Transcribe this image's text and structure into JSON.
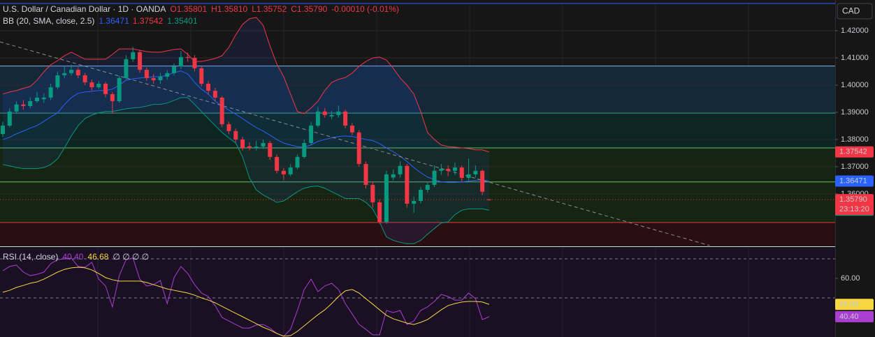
{
  "header": {
    "symbol": "U.S. Dollar / Canadian Dollar · 1D · OANDA",
    "open": "O1.35801",
    "high": "H1.35810",
    "low": "L1.35752",
    "close": "C1.35790",
    "change": "-0.00010 (-0.01%)",
    "currency": "CAD"
  },
  "chart_data": [
    {
      "type": "candlestick",
      "up_color": "#089981",
      "down_color": "#f23645",
      "xlim": [
        -0.408,
        121.5
      ],
      "ylim": [
        1.341,
        1.43
      ],
      "yticks": [
        {
          "value": 1.42,
          "label": "1.42000"
        },
        {
          "value": 1.41,
          "label": "1.41000"
        },
        {
          "value": 1.4,
          "label": "1.40000"
        },
        {
          "value": 1.39,
          "label": "1.39000"
        },
        {
          "value": 1.38,
          "label": "1.38000"
        },
        {
          "value": 1.37,
          "label": "1.37000"
        },
        {
          "value": 1.36,
          "label": "1.36000"
        }
      ],
      "grid": true,
      "open": [
        1.382,
        1.3851,
        1.3903,
        1.3929,
        1.3923,
        1.3941,
        1.3948,
        1.3954,
        1.3992,
        1.4036,
        1.4044,
        1.4056,
        1.4036,
        1.401,
        1.3992,
        1.4005,
        1.3967,
        1.3941,
        1.4026,
        1.4095,
        1.4121,
        1.4056,
        1.4026,
        1.4018,
        1.4031,
        1.4044,
        1.4069,
        1.4103,
        1.41,
        1.4062,
        1.4005,
        1.3979,
        1.3954,
        1.3856,
        1.3831,
        1.38,
        1.3775,
        1.3769,
        1.3774,
        1.3787,
        1.3736,
        1.3685,
        1.3672,
        1.3697,
        1.3736,
        1.3787,
        1.3851,
        1.3903,
        1.3885,
        1.389,
        1.3903,
        1.3851,
        1.3826,
        1.371,
        1.3633,
        1.3569,
        1.3497,
        1.366,
        1.3672,
        1.3703,
        1.3564,
        1.3574,
        1.3615,
        1.3633,
        1.3685,
        1.3692,
        1.3685,
        1.3697,
        1.3659,
        1.3672,
        1.3685,
        1.35801
      ],
      "high": [
        1.3865,
        1.3915,
        1.394,
        1.3945,
        1.3955,
        1.3975,
        1.397,
        1.4005,
        1.405,
        1.407,
        1.4075,
        1.4065,
        1.4045,
        1.402,
        1.4015,
        1.4012,
        1.3975,
        1.4035,
        1.411,
        1.414,
        1.413,
        1.4065,
        1.404,
        1.4045,
        1.4055,
        1.408,
        1.4125,
        1.412,
        1.411,
        1.407,
        1.4015,
        1.399,
        1.396,
        1.3865,
        1.384,
        1.381,
        1.379,
        1.3795,
        1.38,
        1.3795,
        1.3745,
        1.3695,
        1.371,
        1.3745,
        1.38,
        1.3865,
        1.392,
        1.3915,
        1.3905,
        1.3925,
        1.391,
        1.386,
        1.3835,
        1.372,
        1.3645,
        1.358,
        1.3685,
        1.369,
        1.372,
        1.371,
        1.359,
        1.3625,
        1.3645,
        1.3705,
        1.371,
        1.3705,
        1.3715,
        1.3705,
        1.373,
        1.3705,
        1.369,
        1.3581
      ],
      "low": [
        1.381,
        1.3845,
        1.3895,
        1.391,
        1.3915,
        1.3935,
        1.3935,
        1.3945,
        1.3985,
        1.4025,
        1.4035,
        1.4025,
        1.4,
        1.398,
        1.3985,
        1.3955,
        1.3895,
        1.3935,
        1.402,
        1.4085,
        1.4045,
        1.4015,
        1.4005,
        1.4005,
        1.402,
        1.4035,
        1.406,
        1.4085,
        1.405,
        1.3995,
        1.3965,
        1.394,
        1.3845,
        1.382,
        1.379,
        1.376,
        1.376,
        1.376,
        1.3765,
        1.3725,
        1.3675,
        1.365,
        1.3665,
        1.369,
        1.373,
        1.378,
        1.3845,
        1.388,
        1.3875,
        1.388,
        1.384,
        1.3815,
        1.37,
        1.362,
        1.355,
        1.349,
        1.349,
        1.365,
        1.366,
        1.355,
        1.353,
        1.3565,
        1.3605,
        1.3625,
        1.367,
        1.3665,
        1.367,
        1.3645,
        1.365,
        1.366,
        1.3595,
        1.35752
      ],
      "close": [
        1.3851,
        1.3903,
        1.3929,
        1.3923,
        1.3941,
        1.3954,
        1.3954,
        1.3992,
        1.4036,
        1.4044,
        1.4056,
        1.4036,
        1.401,
        1.3992,
        1.4005,
        1.3967,
        1.3941,
        1.4026,
        1.4095,
        1.4121,
        1.4056,
        1.4026,
        1.4018,
        1.4031,
        1.4044,
        1.4069,
        1.4103,
        1.41,
        1.4062,
        1.4005,
        1.3979,
        1.3954,
        1.3856,
        1.3831,
        1.38,
        1.3769,
        1.3769,
        1.3774,
        1.3787,
        1.3736,
        1.3685,
        1.3672,
        1.3697,
        1.3736,
        1.3787,
        1.3851,
        1.3903,
        1.389,
        1.389,
        1.3903,
        1.3851,
        1.3826,
        1.371,
        1.3633,
        1.3569,
        1.3497,
        1.3672,
        1.3672,
        1.3703,
        1.3564,
        1.3574,
        1.3615,
        1.3633,
        1.3685,
        1.3692,
        1.3685,
        1.3697,
        1.3659,
        1.3672,
        1.3685,
        1.3608,
        1.3579
      ],
      "overlays": {
        "name": "BB (20, SMA, close, 2.5)",
        "fill": "rgba(41,98,255,0.10)",
        "series": [
          {
            "color": "#2962ff",
            "value_label": "1.36471",
            "values": [
              1.38,
              1.3808,
              1.3821,
              1.3831,
              1.3842,
              1.3851,
              1.3867,
              1.3883,
              1.3898,
              1.3929,
              1.3954,
              1.397,
              1.3975,
              1.3977,
              1.398,
              1.398,
              1.3985,
              1.4,
              1.4018,
              1.4023,
              1.4026,
              1.4028,
              1.4031,
              1.4031,
              1.4036,
              1.4046,
              1.4052,
              1.4041,
              1.401,
              1.3985,
              1.3967,
              1.3941,
              1.3923,
              1.3908,
              1.3893,
              1.3877,
              1.386,
              1.3844,
              1.3831,
              1.3816,
              1.38,
              1.3787,
              1.378,
              1.3774,
              1.3772,
              1.378,
              1.3793,
              1.38,
              1.3806,
              1.3811,
              1.3813,
              1.3811,
              1.3806,
              1.38,
              1.3796,
              1.3785,
              1.3769,
              1.3755,
              1.3739,
              1.3719,
              1.3697,
              1.3678,
              1.3662,
              1.3652,
              1.3644,
              1.3642,
              1.3642,
              1.3644,
              1.3647,
              1.365,
              1.3652,
              1.36471
            ]
          },
          {
            "color": "#f23645",
            "value_label": "1.37542",
            "values": [
              1.3967,
              1.3975,
              1.398,
              1.3988,
              1.3995,
              1.4018,
              1.4049,
              1.4075,
              1.409,
              1.4108,
              1.4121,
              1.4108,
              1.4095,
              1.4095,
              1.4095,
              1.4095,
              1.4113,
              1.4133,
              1.4133,
              1.4133,
              1.4128,
              1.4123,
              1.4121,
              1.4121,
              1.4126,
              1.4131,
              1.4133,
              1.4113,
              1.4087,
              1.4087,
              1.4092,
              1.4098,
              1.4108,
              1.4139,
              1.4185,
              1.4223,
              1.4244,
              1.4249,
              1.422,
              1.4144,
              1.4077,
              1.4031,
              1.3967,
              1.3903,
              1.3895,
              1.3916,
              1.3941,
              1.398,
              1.401,
              1.4021,
              1.4028,
              1.4044,
              1.4069,
              1.4087,
              1.41,
              1.4103,
              1.4092,
              1.4062,
              1.4026,
              1.4,
              1.3967,
              1.3903,
              1.3826,
              1.38,
              1.378,
              1.3774,
              1.3772,
              1.3769,
              1.3767,
              1.3762,
              1.3762,
              1.37542
            ]
          },
          {
            "color": "#089981",
            "value_label": "1.35401",
            "values": [
              1.3708,
              1.3703,
              1.3697,
              1.3693,
              1.3693,
              1.3693,
              1.3697,
              1.3708,
              1.3729,
              1.3769,
              1.3813,
              1.3851,
              1.3877,
              1.389,
              1.3898,
              1.3903,
              1.3903,
              1.3908,
              1.3913,
              1.3916,
              1.3918,
              1.3923,
              1.3929,
              1.3929,
              1.3934,
              1.3944,
              1.3954,
              1.3954,
              1.3929,
              1.3903,
              1.3877,
              1.3851,
              1.3826,
              1.3806,
              1.3787,
              1.3736,
              1.3659,
              1.3615,
              1.3596,
              1.3583,
              1.3569,
              1.3574,
              1.3591,
              1.3608,
              1.3621,
              1.3627,
              1.3629,
              1.3621,
              1.3608,
              1.3596,
              1.3583,
              1.3583,
              1.3583,
              1.3569,
              1.3545,
              1.3497,
              1.3442,
              1.3429,
              1.3422,
              1.3417,
              1.3417,
              1.3429,
              1.3452,
              1.3473,
              1.3493,
              1.3497,
              1.3524,
              1.354,
              1.3545,
              1.3545,
              1.3545,
              1.35401
            ]
          }
        ]
      },
      "levels": [
        {
          "value": 1.407,
          "color": "#7fb3e6"
        },
        {
          "value": 1.3897,
          "color": "#26a69a"
        },
        {
          "value": 1.3769,
          "color": "#66bb6a"
        },
        {
          "value": 1.3644,
          "color": "#66bb6a"
        },
        {
          "value": 1.3495,
          "color": "#e53935"
        }
      ],
      "zones": [
        {
          "from": 1.407,
          "to": 1.3897,
          "color": "#14283a"
        },
        {
          "from": 1.3897,
          "to": 1.3769,
          "color": "#0d2621"
        },
        {
          "from": 1.3769,
          "to": 1.3495,
          "color": "#162412"
        },
        {
          "from": 1.3495,
          "to": 1.341,
          "color": "#2a0f12"
        }
      ],
      "trendline": {
        "x": [
          -0.4,
          103.2
        ],
        "y": [
          1.4159,
          1.341
        ],
        "color": "#8a8d96"
      },
      "last_price": {
        "value": 1.3579,
        "label": "1.35790",
        "countdown": "23:13:20",
        "color": "#f23645"
      }
    },
    {
      "type": "line",
      "title": "RSI (14, close)",
      "placeholders": "∅ ∅ ∅ ∅",
      "xlim": [
        -0.408,
        121.5
      ],
      "ylim": [
        30,
        75.7
      ],
      "yticks": [
        {
          "value": 60,
          "label": "60.00"
        }
      ],
      "dashed_levels": [
        70,
        50
      ],
      "series": [
        {
          "color": "#a93fd1",
          "value_label": "40.40",
          "tag_text": "#ffffff",
          "values": [
            63.9,
            66.1,
            66.8,
            63.2,
            61.4,
            62.1,
            63.2,
            67.5,
            69.6,
            70.0,
            70.4,
            66.1,
            65.7,
            68.2,
            59.6,
            56.1,
            45.4,
            61.4,
            69.6,
            70.4,
            59.6,
            56.1,
            56.8,
            58.9,
            47.1,
            60.4,
            66.1,
            62.5,
            56.8,
            52.5,
            50.7,
            46.1,
            40.0,
            38.2,
            36.4,
            34.6,
            34.6,
            36.1,
            36.4,
            34.6,
            31.8,
            30.4,
            33.9,
            43.6,
            54.3,
            59.6,
            53.2,
            56.1,
            57.5,
            54.3,
            47.1,
            41.8,
            36.4,
            33.9,
            31.1,
            31.1,
            43.6,
            42.5,
            43.6,
            36.4,
            38.2,
            43.6,
            45.4,
            48.2,
            51.8,
            50.7,
            48.9,
            48.9,
            52.5,
            49.6,
            38.9,
            40.4
          ]
        },
        {
          "color": "#f5d742",
          "value_label": "46.68",
          "tag_text": "#000000",
          "values": [
            52.9,
            53.9,
            55.4,
            56.4,
            57.5,
            58.2,
            59.6,
            61.4,
            63.2,
            64.6,
            65.4,
            65.7,
            65.4,
            64.3,
            62.5,
            60.4,
            59.3,
            58.6,
            58.6,
            58.6,
            58.6,
            57.9,
            56.8,
            55.7,
            54.6,
            53.9,
            53.2,
            52.5,
            51.4,
            50.0,
            48.9,
            47.5,
            45.7,
            43.9,
            42.1,
            40.4,
            38.6,
            36.8,
            35.0,
            33.6,
            31.8,
            30.4,
            30.7,
            32.9,
            35.7,
            38.6,
            41.4,
            43.9,
            47.1,
            50.7,
            53.6,
            54.3,
            52.5,
            49.6,
            46.8,
            43.9,
            41.1,
            39.3,
            38.2,
            37.1,
            36.4,
            37.5,
            38.9,
            41.4,
            43.9,
            46.1,
            47.1,
            47.9,
            48.2,
            48.2,
            47.9,
            46.68
          ]
        }
      ]
    }
  ]
}
